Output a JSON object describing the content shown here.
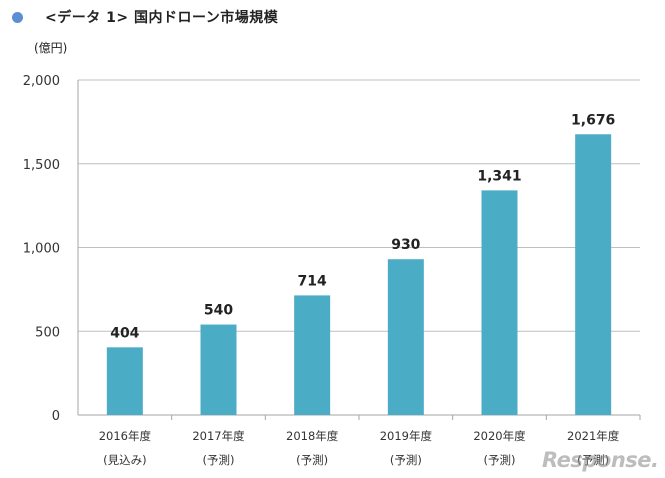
{
  "header": {
    "title": "<データ 1> 国内ドローン市場規模",
    "unit": "(億円)",
    "bullet_color": "#5b8fd1"
  },
  "watermark": {
    "text": "Response."
  },
  "chart_data": {
    "type": "bar",
    "title": "<データ 1> 国内ドローン市場規模",
    "ylabel": "(億円)",
    "ylim": [
      0,
      2000
    ],
    "yticks": [
      0,
      500,
      1000,
      1500,
      2000
    ],
    "ytick_labels": [
      "0",
      "500",
      "1,000",
      "1,500",
      "2,000"
    ],
    "grid": true,
    "bar_color": "#4bacc6",
    "categories": [
      {
        "year": "2016年度",
        "note": "(見込み)"
      },
      {
        "year": "2017年度",
        "note": "(予測)"
      },
      {
        "year": "2018年度",
        "note": "(予測)"
      },
      {
        "year": "2019年度",
        "note": "(予測)"
      },
      {
        "year": "2020年度",
        "note": "(予測)"
      },
      {
        "year": "2021年度",
        "note": "(予測)"
      }
    ],
    "values": [
      404,
      540,
      714,
      930,
      1341,
      1676
    ],
    "value_labels": [
      "404",
      "540",
      "714",
      "930",
      "1,341",
      "1,676"
    ]
  }
}
